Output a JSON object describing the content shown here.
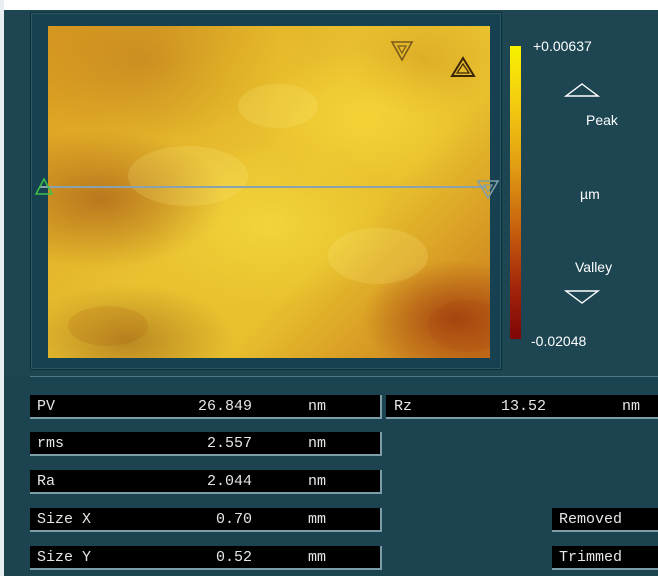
{
  "scale": {
    "max": "+0.00637",
    "min": "-0.02048",
    "peak_label": "Peak",
    "unit": "µm",
    "valley_label": "Valley",
    "colors": [
      "#f7f100",
      "#e2a012",
      "#c8620e",
      "#a4260a",
      "#7e0606"
    ]
  },
  "icons": {
    "peak": "peak-triangle-icon",
    "valley": "valley-triangle-icon",
    "line_start": "line-start-marker-icon",
    "line_end": "line-end-marker-icon"
  },
  "stats": [
    {
      "name": "PV",
      "value": "26.849",
      "unit": "nm"
    },
    {
      "name": "rms",
      "value": "2.557",
      "unit": "nm"
    },
    {
      "name": "Ra",
      "value": "2.044",
      "unit": "nm"
    },
    {
      "name": "Size X",
      "value": "0.70",
      "unit": "mm"
    },
    {
      "name": "Size Y",
      "value": "0.52",
      "unit": "mm"
    }
  ],
  "rz": {
    "name": "Rz",
    "value": "13.52",
    "unit": "nm"
  },
  "flags": {
    "removed": "Removed",
    "trimmed": "Trimmed"
  }
}
